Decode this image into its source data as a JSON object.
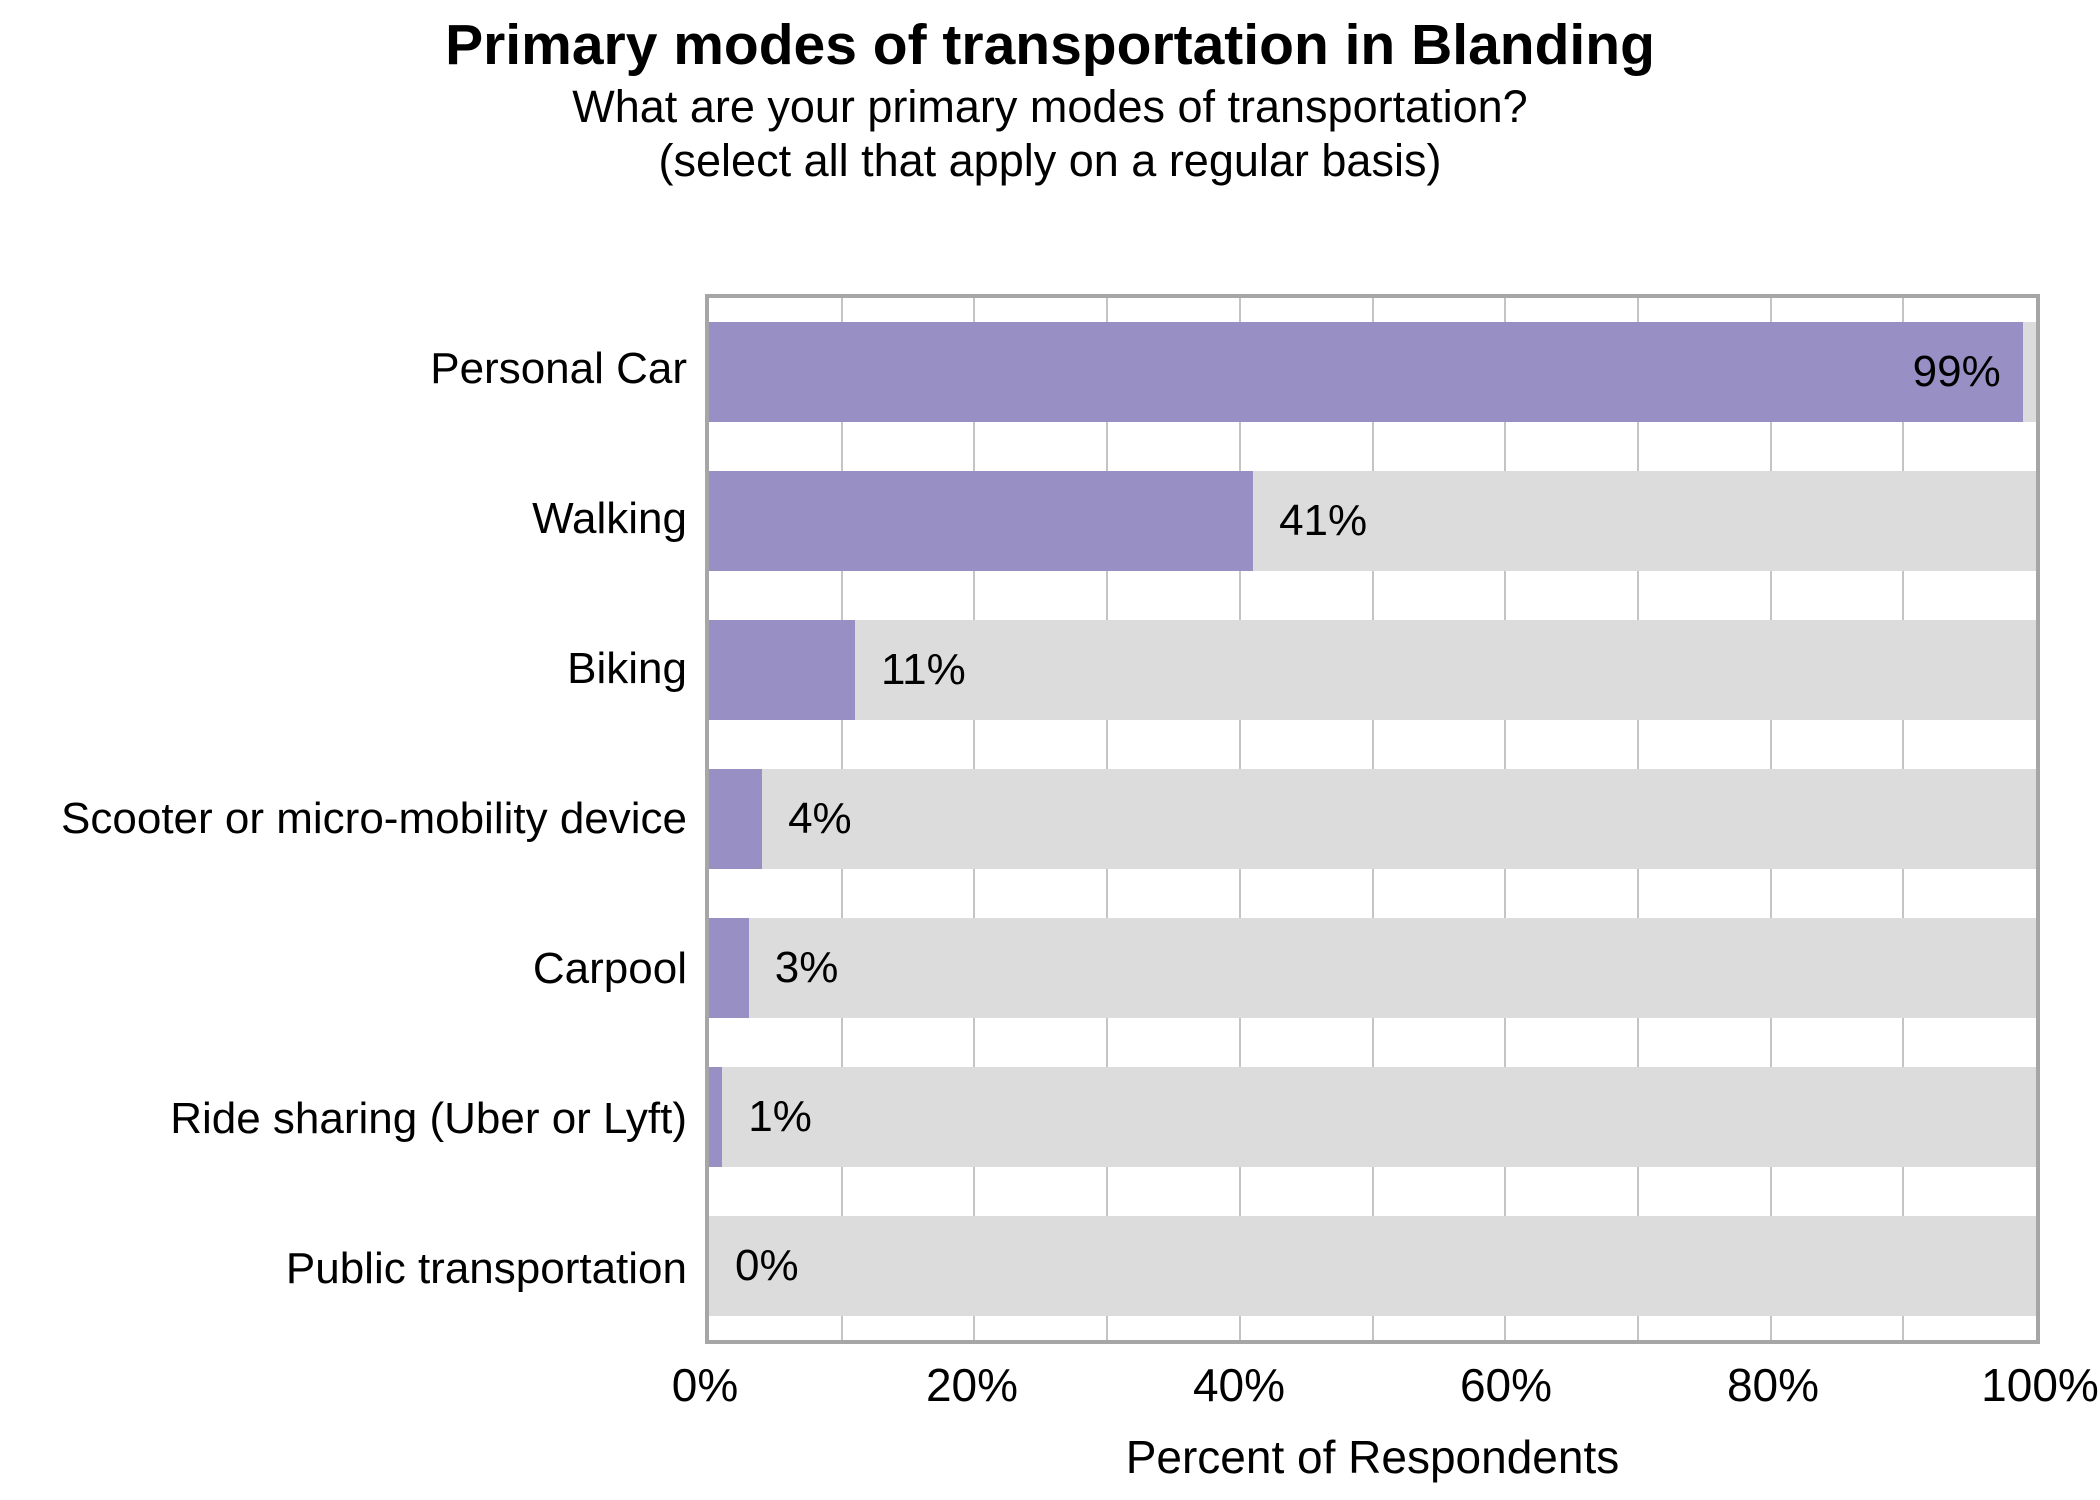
{
  "header": {
    "title": "Primary modes of transportation in Blanding",
    "subtitle_line1": "What are your primary modes of transportation?",
    "subtitle_line2": "(select all that apply on a regular basis)"
  },
  "chart_data": {
    "type": "bar",
    "orientation": "horizontal",
    "title": "Primary modes of transportation in Blanding",
    "subtitle": "What are your primary modes of transportation? (select all that apply on a regular basis)",
    "categories": [
      "Personal Car",
      "Walking",
      "Biking",
      "Scooter or micro-mobility device",
      "Carpool",
      "Ride sharing (Uber or Lyft)",
      "Public transportation"
    ],
    "values": [
      99,
      41,
      11,
      4,
      3,
      1,
      0
    ],
    "value_labels": [
      "99%",
      "41%",
      "11%",
      "4%",
      "3%",
      "1%",
      "0%"
    ],
    "xlabel": "Percent of Respondents",
    "ylabel": "",
    "xlim": [
      0,
      100
    ],
    "x_tick_labels": [
      "0%",
      "20%",
      "40%",
      "60%",
      "80%",
      "100%"
    ],
    "x_tick_values": [
      0,
      20,
      40,
      60,
      80,
      100
    ],
    "gridline_values": [
      10,
      20,
      30,
      40,
      50,
      60,
      70,
      80,
      90
    ],
    "grid": "vertical gridlines every 10%",
    "legend_position": "none",
    "colors": {
      "bar_fill": "#9890c4",
      "bar_track": "#dcdcdc",
      "plot_border": "#a6a6a6",
      "gridline": "#c4c4c4",
      "text": "#000000",
      "background": "#ffffff"
    }
  }
}
